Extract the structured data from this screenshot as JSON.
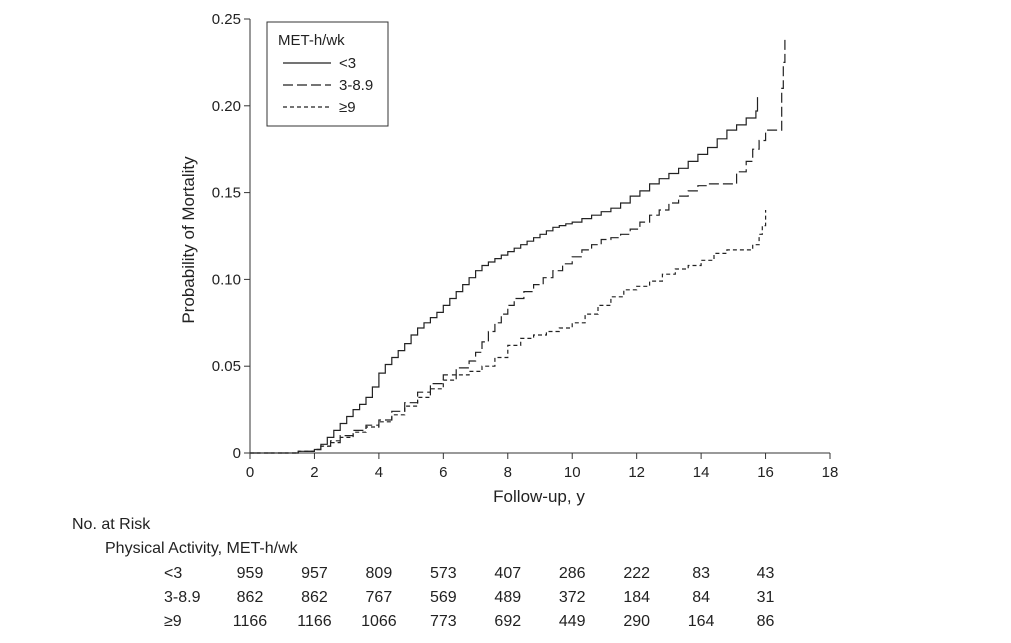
{
  "chart_data": {
    "type": "line",
    "xlabel": "Follow-up, y",
    "ylabel": "Probability of Mortality",
    "xlim": [
      0,
      18
    ],
    "ylim": [
      0,
      0.25
    ],
    "x_ticks": [
      "0",
      "2",
      "4",
      "6",
      "8",
      "10",
      "12",
      "14",
      "16",
      "18"
    ],
    "y_ticks": [
      "0",
      "0.05",
      "0.10",
      "0.15",
      "0.20",
      "0.25"
    ],
    "grid": false,
    "legend": {
      "title": "MET-h/wk",
      "position": "top-left"
    },
    "series": [
      {
        "name": "<3",
        "style": "solid",
        "x": [
          0,
          1.5,
          2,
          2.2,
          2.4,
          2.6,
          2.8,
          3.0,
          3.2,
          3.4,
          3.6,
          3.8,
          4.0,
          4.2,
          4.4,
          4.6,
          4.8,
          5.0,
          5.2,
          5.4,
          5.6,
          5.8,
          6.0,
          6.2,
          6.4,
          6.6,
          6.8,
          7.0,
          7.2,
          7.4,
          7.6,
          7.8,
          8.0,
          8.2,
          8.4,
          8.6,
          8.8,
          9.0,
          9.2,
          9.4,
          9.6,
          9.8,
          10.0,
          10.3,
          10.6,
          10.9,
          11.2,
          11.5,
          11.8,
          12.1,
          12.4,
          12.7,
          13.0,
          13.3,
          13.6,
          13.9,
          14.2,
          14.5,
          14.8,
          15.1,
          15.4,
          15.7,
          15.75
        ],
        "values": [
          0,
          0.001,
          0.002,
          0.005,
          0.009,
          0.013,
          0.017,
          0.021,
          0.025,
          0.028,
          0.032,
          0.038,
          0.046,
          0.051,
          0.055,
          0.059,
          0.063,
          0.068,
          0.072,
          0.075,
          0.078,
          0.081,
          0.085,
          0.089,
          0.093,
          0.097,
          0.101,
          0.105,
          0.108,
          0.11,
          0.112,
          0.114,
          0.116,
          0.118,
          0.12,
          0.122,
          0.124,
          0.126,
          0.128,
          0.13,
          0.131,
          0.132,
          0.133,
          0.135,
          0.137,
          0.139,
          0.141,
          0.144,
          0.148,
          0.151,
          0.155,
          0.158,
          0.161,
          0.164,
          0.168,
          0.172,
          0.176,
          0.181,
          0.186,
          0.189,
          0.193,
          0.197,
          0.205
        ]
      },
      {
        "name": "3-8.9",
        "style": "long-dash",
        "x": [
          0,
          1.5,
          2,
          2.2,
          2.5,
          2.8,
          3.2,
          3.6,
          4.0,
          4.4,
          4.8,
          5.2,
          5.6,
          6.0,
          6.4,
          6.8,
          7.0,
          7.2,
          7.4,
          7.6,
          7.8,
          8.0,
          8.2,
          8.5,
          8.8,
          9.1,
          9.4,
          9.7,
          10.0,
          10.3,
          10.6,
          10.9,
          11.2,
          11.5,
          11.8,
          12.1,
          12.4,
          12.7,
          13.0,
          13.3,
          13.6,
          13.9,
          14.2,
          14.5,
          14.8,
          15.1,
          15.4,
          15.6,
          15.8,
          16.0,
          16.2,
          16.4,
          16.5,
          16.55,
          16.6
        ],
        "values": [
          0,
          0.001,
          0.002,
          0.004,
          0.007,
          0.01,
          0.013,
          0.016,
          0.019,
          0.024,
          0.029,
          0.035,
          0.04,
          0.045,
          0.049,
          0.053,
          0.058,
          0.064,
          0.07,
          0.075,
          0.08,
          0.085,
          0.089,
          0.093,
          0.097,
          0.101,
          0.105,
          0.109,
          0.113,
          0.117,
          0.12,
          0.123,
          0.124,
          0.126,
          0.129,
          0.133,
          0.137,
          0.14,
          0.144,
          0.148,
          0.151,
          0.154,
          0.155,
          0.155,
          0.155,
          0.162,
          0.168,
          0.175,
          0.18,
          0.186,
          0.186,
          0.186,
          0.21,
          0.225,
          0.24
        ]
      },
      {
        "name": "≥9",
        "style": "short-dash",
        "x": [
          0,
          1.5,
          2,
          2.2,
          2.5,
          2.8,
          3.2,
          3.6,
          4.0,
          4.4,
          4.8,
          5.2,
          5.6,
          6.0,
          6.4,
          6.8,
          7.2,
          7.6,
          8.0,
          8.4,
          8.8,
          9.2,
          9.6,
          10.0,
          10.4,
          10.8,
          11.2,
          11.6,
          12.0,
          12.4,
          12.8,
          13.2,
          13.6,
          14.0,
          14.4,
          14.8,
          15.2,
          15.6,
          15.8,
          15.9,
          16.0
        ],
        "values": [
          0,
          0.001,
          0.002,
          0.004,
          0.006,
          0.009,
          0.012,
          0.015,
          0.018,
          0.022,
          0.027,
          0.032,
          0.037,
          0.042,
          0.045,
          0.047,
          0.05,
          0.055,
          0.062,
          0.066,
          0.068,
          0.07,
          0.072,
          0.075,
          0.08,
          0.085,
          0.09,
          0.094,
          0.096,
          0.099,
          0.103,
          0.106,
          0.108,
          0.111,
          0.115,
          0.117,
          0.117,
          0.12,
          0.126,
          0.131,
          0.14
        ]
      }
    ]
  },
  "risk_table": {
    "title": "No. at Risk",
    "subtitle": "Physical Activity, MET-h/wk",
    "rows": [
      {
        "label": "<3",
        "values": [
          "959",
          "957",
          "809",
          "573",
          "407",
          "286",
          "222",
          "83",
          "43"
        ]
      },
      {
        "label": "3-8.9",
        "values": [
          "862",
          "862",
          "767",
          "569",
          "489",
          "372",
          "184",
          "84",
          "31"
        ]
      },
      {
        "label": "≥9",
        "values": [
          "1166",
          "1166",
          "1066",
          "773",
          "692",
          "449",
          "290",
          "164",
          "86"
        ]
      }
    ]
  }
}
